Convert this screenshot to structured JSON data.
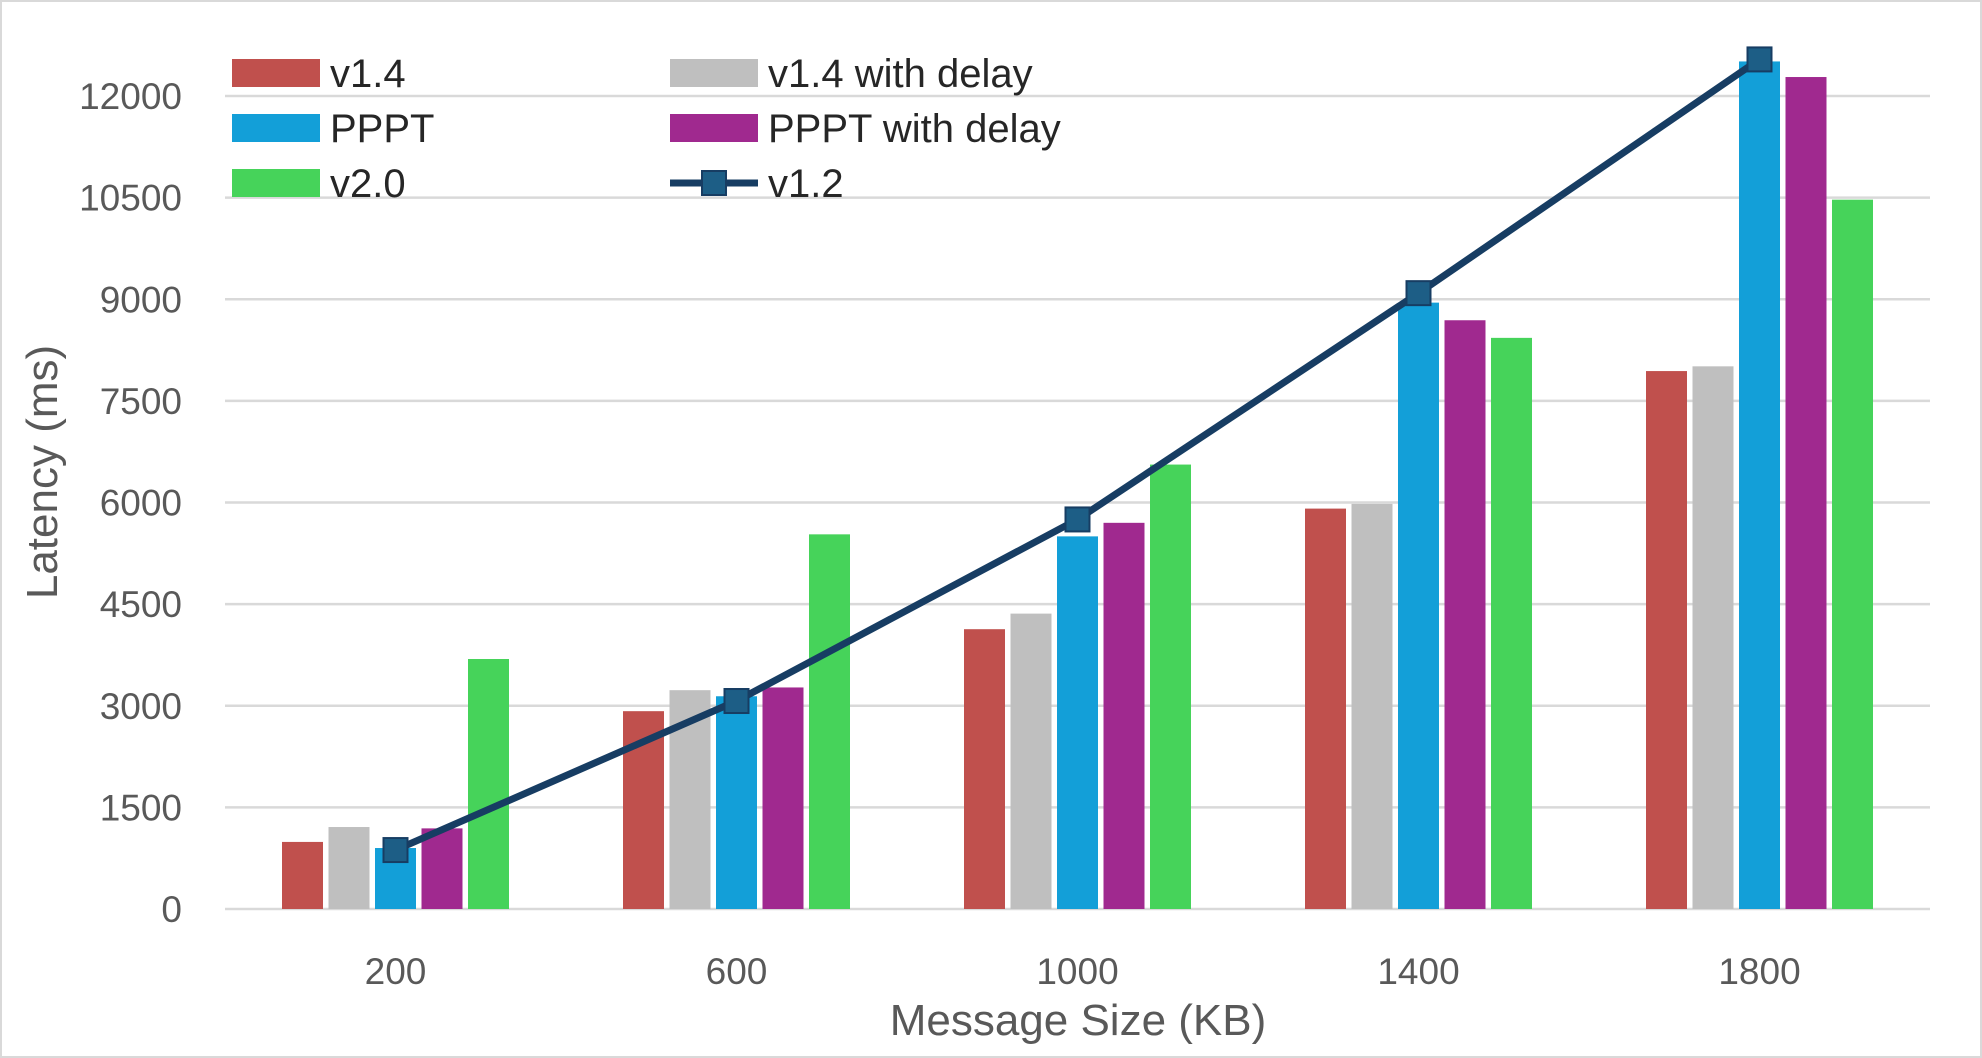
{
  "chart_data": {
    "type": "bar",
    "xlabel": "Message Size (KB)",
    "ylabel": "Latency (ms)",
    "ylim": [
      0,
      12000
    ],
    "yticks": [
      "0",
      "1500",
      "3000",
      "4500",
      "6000",
      "7500",
      "9000",
      "10500",
      "12000"
    ],
    "grid": true,
    "legend_position": "top-left",
    "categories": [
      "200",
      "600",
      "1000",
      "1400",
      "1800"
    ],
    "series": [
      {
        "name": "v1.4",
        "kind": "bar",
        "color": "#C0504D",
        "values": [
          990,
          2920,
          4130,
          5910,
          7940
        ]
      },
      {
        "name": "v1.4 with delay",
        "kind": "bar",
        "color": "#BFBFBF",
        "values": [
          1210,
          3230,
          4360,
          5980,
          8010
        ]
      },
      {
        "name": "PPPT",
        "kind": "bar",
        "color": "#139FD8",
        "values": [
          900,
          3140,
          5500,
          8950,
          12510
        ]
      },
      {
        "name": "PPPT with delay",
        "kind": "bar",
        "color": "#A0298F",
        "values": [
          1190,
          3270,
          5700,
          8690,
          12280
        ]
      },
      {
        "name": "v2.0",
        "kind": "bar",
        "color": "#46D35A",
        "values": [
          3690,
          5530,
          6560,
          8430,
          10470
        ]
      },
      {
        "name": "v1.2",
        "kind": "line",
        "color": "#173D63",
        "marker_color": "#1D5E86",
        "values": [
          870,
          3070,
          5750,
          9090,
          12540
        ]
      }
    ]
  }
}
